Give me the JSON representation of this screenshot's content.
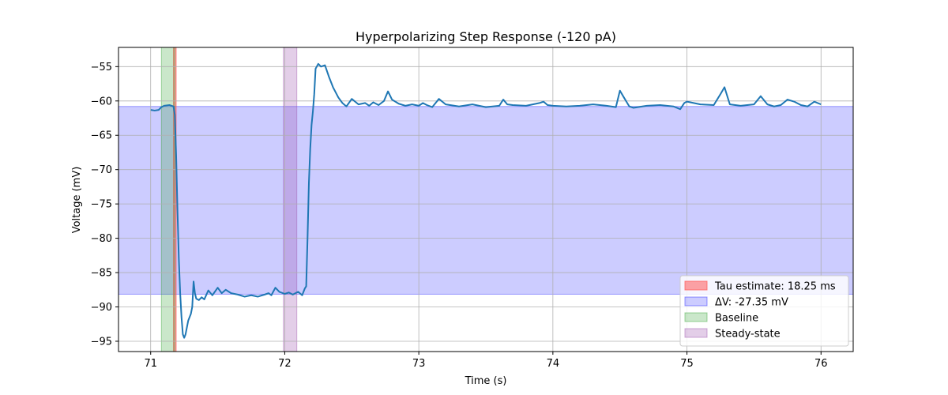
{
  "chart_data": {
    "type": "line",
    "title": "Hyperpolarizing Step Response (-120 pA)",
    "xlabel": "Time (s)",
    "ylabel": "Voltage (mV)",
    "xlim": [
      70.76,
      76.24
    ],
    "ylim": [
      -96.5,
      -52.2
    ],
    "xticks": [
      71,
      72,
      73,
      74,
      75,
      76
    ],
    "yticks": [
      -95,
      -90,
      -85,
      -80,
      -75,
      -70,
      -65,
      -60,
      -55
    ],
    "grid": true,
    "legend_position": "lower-right",
    "series": [
      {
        "color": "#1f77b4",
        "x": [
          71.0,
          71.03,
          71.06,
          71.08,
          71.1,
          71.14,
          71.17,
          71.18,
          71.19,
          71.2,
          71.21,
          71.22,
          71.23,
          71.24,
          71.25,
          71.26,
          71.27,
          71.28,
          71.3,
          71.31,
          71.32,
          71.33,
          71.34,
          71.36,
          71.38,
          71.4,
          71.43,
          71.46,
          71.5,
          71.53,
          71.56,
          71.6,
          71.65,
          71.7,
          71.75,
          71.8,
          71.85,
          71.88,
          71.9,
          71.93,
          71.96,
          72.0,
          72.03,
          72.06,
          72.1,
          72.13,
          72.15,
          72.16,
          72.17,
          72.18,
          72.19,
          72.2,
          72.21,
          72.22,
          72.23,
          72.25,
          72.27,
          72.3,
          72.33,
          72.36,
          72.4,
          72.43,
          72.46,
          72.5,
          72.55,
          72.6,
          72.63,
          72.66,
          72.7,
          72.74,
          72.77,
          72.8,
          72.85,
          72.9,
          72.95,
          73.0,
          73.03,
          73.06,
          73.1,
          73.15,
          73.2,
          73.3,
          73.4,
          73.5,
          73.6,
          73.63,
          73.66,
          73.7,
          73.8,
          73.9,
          73.93,
          73.96,
          74.0,
          74.1,
          74.2,
          74.3,
          74.4,
          74.47,
          74.5,
          74.53,
          74.57,
          74.6,
          74.7,
          74.8,
          74.9,
          74.95,
          74.98,
          75.0,
          75.1,
          75.2,
          75.25,
          75.28,
          75.32,
          75.4,
          75.5,
          75.55,
          75.6,
          75.65,
          75.7,
          75.75,
          75.8,
          75.85,
          75.9,
          75.95,
          76.0
        ],
        "y": [
          -61.3,
          -61.4,
          -61.3,
          -60.9,
          -60.7,
          -60.6,
          -60.8,
          -62.0,
          -68.0,
          -76.0,
          -83.0,
          -88.0,
          -91.5,
          -94.0,
          -94.5,
          -94.0,
          -93.0,
          -92.0,
          -91.0,
          -90.0,
          -86.3,
          -88.0,
          -88.8,
          -89.0,
          -88.6,
          -88.9,
          -87.6,
          -88.3,
          -87.2,
          -88.0,
          -87.5,
          -88.0,
          -88.2,
          -88.5,
          -88.3,
          -88.5,
          -88.2,
          -88.0,
          -88.3,
          -87.2,
          -87.8,
          -88.1,
          -87.9,
          -88.2,
          -87.8,
          -88.3,
          -87.3,
          -87.0,
          -80.0,
          -72.0,
          -67.0,
          -63.5,
          -61.5,
          -59.0,
          -55.3,
          -54.6,
          -55.0,
          -54.8,
          -56.5,
          -58.0,
          -59.5,
          -60.3,
          -60.8,
          -59.7,
          -60.5,
          -60.3,
          -60.7,
          -60.2,
          -60.6,
          -60.0,
          -58.6,
          -59.8,
          -60.4,
          -60.7,
          -60.5,
          -60.7,
          -60.3,
          -60.6,
          -60.9,
          -59.7,
          -60.5,
          -60.8,
          -60.5,
          -60.9,
          -60.7,
          -59.8,
          -60.5,
          -60.6,
          -60.7,
          -60.3,
          -60.1,
          -60.6,
          -60.7,
          -60.8,
          -60.7,
          -60.5,
          -60.7,
          -60.9,
          -58.5,
          -59.5,
          -60.8,
          -61.0,
          -60.7,
          -60.6,
          -60.8,
          -61.2,
          -60.3,
          -60.1,
          -60.5,
          -60.6,
          -59.0,
          -58.0,
          -60.5,
          -60.7,
          -60.5,
          -59.3,
          -60.5,
          -60.8,
          -60.6,
          -59.8,
          -60.1,
          -60.6,
          -60.8,
          -60.1,
          -60.5
        ]
      }
    ],
    "shaded_regions": [
      {
        "label": "Tau estimate: 18.25 ms",
        "orientation": "vertical",
        "x_range": [
          71.17,
          71.19
        ],
        "color": "#ff5a5a",
        "opacity": 0.55
      },
      {
        "label": "ΔV: -27.35 mV",
        "orientation": "horizontal",
        "y_range": [
          -88.15,
          -60.8
        ],
        "color": "#0000ff",
        "opacity": 0.2
      },
      {
        "label": "Baseline",
        "orientation": "vertical",
        "x_range": [
          71.08,
          71.18
        ],
        "color": "#2ca02c",
        "opacity": 0.25
      },
      {
        "label": "Steady-state",
        "orientation": "vertical",
        "x_range": [
          71.99,
          72.09
        ],
        "color": "#9b4fab",
        "opacity": 0.28
      }
    ],
    "legend": [
      {
        "label": "Tau estimate: 18.25 ms",
        "color": "#ff5a5a",
        "opacity": 0.55
      },
      {
        "label": "ΔV: -27.35 mV",
        "color": "#0000ff",
        "opacity": 0.2
      },
      {
        "label": "Baseline",
        "color": "#2ca02c",
        "opacity": 0.25
      },
      {
        "label": "Steady-state",
        "color": "#9b4fab",
        "opacity": 0.28
      }
    ]
  }
}
